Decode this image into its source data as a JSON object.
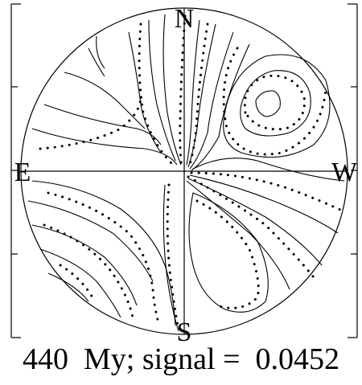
{
  "labels": {
    "north": "N",
    "south": "S",
    "east": "E",
    "west": "W"
  },
  "caption": "440  My; signal =  0.0452",
  "colors": {
    "lines": "#000000",
    "background": "#ffffff"
  }
}
